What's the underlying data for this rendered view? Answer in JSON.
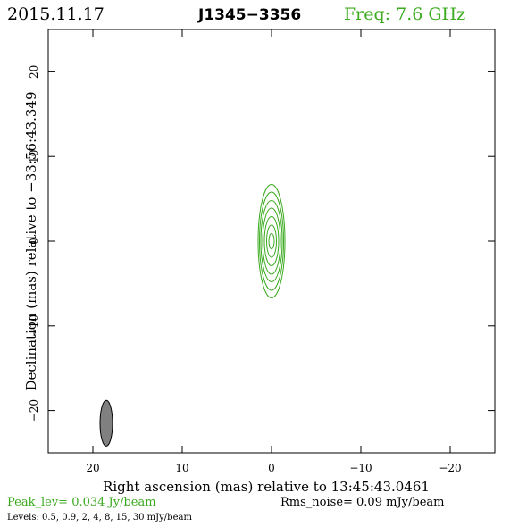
{
  "header": {
    "date": "2015.11.17",
    "source": "J1345−3356",
    "freq": "Freq: 7.6 GHz"
  },
  "colors": {
    "green": "#3aaa1e",
    "black": "#000000",
    "beam_fill": "#808080"
  },
  "chart_data": {
    "type": "contour",
    "xlabel": "Right ascension (mas) relative to 13:45:43.0461",
    "ylabel": "Declination (mas) relative to −33:56:43.349",
    "xlim": [
      25,
      -25
    ],
    "ylim": [
      -25,
      25
    ],
    "x_ticks": [
      20,
      10,
      0,
      -10,
      -20
    ],
    "y_ticks": [
      20,
      10,
      0,
      -10,
      -20
    ],
    "x_tick_labels": [
      "20",
      "10",
      "0",
      "−10",
      "−20"
    ],
    "y_tick_labels": [
      "20",
      "10",
      "0",
      "−10",
      "−20"
    ],
    "contours": [
      {
        "level": 0.5,
        "ra_semi": 1.5,
        "dec_semi": 6.7
      },
      {
        "level": 0.9,
        "ra_semi": 1.35,
        "dec_semi": 5.8
      },
      {
        "level": 2,
        "ra_semi": 1.2,
        "dec_semi": 4.8
      },
      {
        "level": 4,
        "ra_semi": 1.0,
        "dec_semi": 3.9
      },
      {
        "level": 8,
        "ra_semi": 0.8,
        "dec_semi": 2.9
      },
      {
        "level": 15,
        "ra_semi": 0.55,
        "dec_semi": 1.9
      },
      {
        "level": 30,
        "ra_semi": 0.3,
        "dec_semi": 0.9
      }
    ],
    "beam": {
      "ra": 18.5,
      "dec": -21.5,
      "ra_semi": 0.7,
      "dec_semi": 2.7
    },
    "peak_label": "Peak_lev=  0.034 Jy/beam",
    "rms_label": "Rms_noise= 0.09 mJy/beam",
    "levels_label": "Levels: 0.5, 0.9,   2,   4,   8,  15,  30 mJy/beam"
  }
}
